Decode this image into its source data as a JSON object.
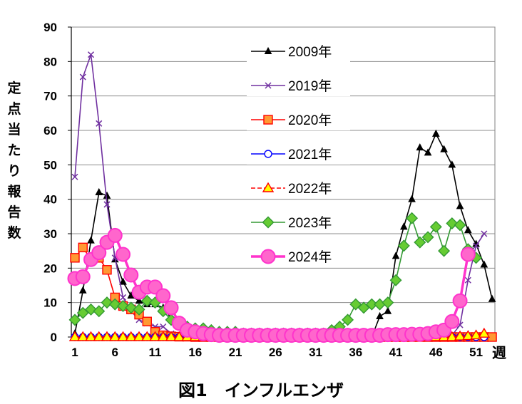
{
  "caption": "図1　インフルエンザ",
  "chart_data": {
    "type": "line",
    "title": "",
    "ylabel": "定点当たり報告数",
    "xlabel": "週",
    "ylim": [
      0,
      90
    ],
    "yticks": [
      0,
      10,
      20,
      30,
      40,
      50,
      60,
      70,
      80,
      90
    ],
    "xticks": [
      1,
      6,
      11,
      16,
      21,
      26,
      31,
      36,
      41,
      46,
      51
    ],
    "xlim": [
      1,
      53
    ],
    "grid": "horizontal",
    "legend_position": "top-center",
    "series": [
      {
        "name": "2009年",
        "color": "#000000",
        "marker": "triangle",
        "width": 1.6,
        "x": [
          1,
          2,
          3,
          4,
          5,
          6,
          7,
          8,
          9,
          10,
          11,
          12,
          13,
          14,
          15,
          16,
          17,
          18,
          19,
          20,
          21,
          22,
          23,
          24,
          25,
          26,
          27,
          28,
          29,
          30,
          31,
          32,
          33,
          34,
          35,
          36,
          37,
          38,
          39,
          40,
          41,
          42,
          43,
          44,
          45,
          46,
          47,
          48,
          49,
          50,
          51,
          52,
          53
        ],
        "values": [
          1,
          13.5,
          28,
          42,
          41,
          22.5,
          16,
          12,
          10.5,
          9.5,
          9.5,
          8.5,
          5.5,
          3,
          1.5,
          0.5,
          0,
          0,
          0,
          0,
          0,
          0,
          0,
          0,
          0,
          0,
          0,
          0,
          0,
          0,
          0,
          0,
          0,
          0,
          0,
          0,
          0,
          0,
          6,
          7.5,
          23.5,
          32,
          40,
          55,
          53.5,
          59,
          54.5,
          50,
          38,
          31,
          27,
          21,
          11
        ]
      },
      {
        "name": "2019年",
        "color": "#7030A0",
        "marker": "x",
        "width": 1.6,
        "x": [
          1,
          2,
          3,
          4,
          5,
          6,
          7,
          8,
          9,
          10,
          11,
          12,
          13,
          14,
          15,
          16,
          17,
          18,
          19,
          20,
          21,
          22,
          23,
          24,
          25,
          26,
          27,
          28,
          29,
          30,
          31,
          32,
          33,
          34,
          35,
          36,
          37,
          38,
          39,
          40,
          41,
          42,
          43,
          44,
          45,
          46,
          47,
          48,
          49,
          50,
          51,
          52
        ],
        "values": [
          46.5,
          75.5,
          82,
          62,
          38.5,
          23,
          11.5,
          7.5,
          5,
          4,
          3,
          3,
          1,
          0.5,
          0.5,
          0.3,
          0.3,
          0.2,
          0.2,
          0.2,
          0.2,
          0.2,
          0.2,
          0.2,
          0.2,
          0.2,
          0.2,
          0.2,
          0.2,
          0.2,
          0.2,
          0.2,
          0.2,
          0.2,
          0.2,
          0.2,
          0.2,
          0.2,
          0.2,
          0.2,
          0.2,
          0.2,
          0.2,
          0.2,
          0.3,
          0.3,
          0.5,
          0.5,
          3.5,
          16.5,
          26.5,
          30
        ]
      },
      {
        "name": "2020年",
        "color": "#FF0000",
        "fill": "#FF9933",
        "marker": "square",
        "width": 1.6,
        "x": [
          1,
          2,
          3,
          4,
          5,
          6,
          7,
          8,
          9,
          10,
          11,
          12,
          13,
          14,
          15,
          16,
          17,
          18,
          19,
          20,
          21,
          22,
          23,
          24,
          25,
          26,
          27,
          28,
          29,
          30,
          31,
          32,
          33,
          34,
          35,
          36,
          37,
          38,
          39,
          40,
          41,
          42,
          43,
          44,
          45,
          46,
          47,
          48,
          49,
          50,
          51,
          52,
          53
        ],
        "values": [
          23,
          26,
          22.5,
          23,
          19.5,
          11.5,
          9,
          8,
          6.5,
          4.5,
          1.5,
          0.5,
          0.2,
          0.1,
          0.1,
          0,
          0,
          0,
          0,
          0,
          0,
          0,
          0,
          0,
          0,
          0,
          0,
          0,
          0,
          0,
          0,
          0,
          0,
          0,
          0,
          0,
          0,
          0,
          0,
          0,
          0,
          0,
          0,
          0,
          0,
          0,
          0,
          0,
          0,
          0,
          0,
          0,
          0
        ]
      },
      {
        "name": "2021年",
        "color": "#0000FF",
        "fill": "#FFFFFF",
        "marker": "circle",
        "width": 1.6,
        "x": [
          1,
          2,
          3,
          4,
          5,
          6,
          7,
          8,
          9,
          10,
          11,
          12,
          13,
          14,
          15,
          16,
          17,
          18,
          19,
          20,
          21,
          22,
          23,
          24,
          25,
          26,
          27,
          28,
          29,
          30,
          31,
          32,
          33,
          34,
          35,
          36,
          37,
          38,
          39,
          40,
          41,
          42,
          43,
          44,
          45,
          46,
          47,
          48,
          49,
          50,
          51,
          52
        ],
        "values": [
          0,
          0,
          0,
          0,
          0,
          0,
          0,
          0,
          0,
          0,
          0,
          0,
          0,
          0,
          0,
          0,
          0,
          0,
          0,
          0,
          0,
          0,
          0,
          0,
          0,
          0,
          0,
          0,
          0,
          0,
          0,
          0,
          0,
          0,
          0,
          0,
          0,
          0,
          0,
          0,
          0,
          0,
          0,
          0,
          0,
          0,
          0,
          0,
          0,
          0,
          0,
          0
        ]
      },
      {
        "name": "2022年",
        "color": "#FF0000",
        "fill": "#FFFF00",
        "marker": "triangle-filled",
        "width": 1.6,
        "dashed": true,
        "x": [
          1,
          2,
          3,
          4,
          5,
          6,
          7,
          8,
          9,
          10,
          11,
          12,
          13,
          14,
          15,
          16,
          17,
          18,
          19,
          20,
          21,
          22,
          23,
          24,
          25,
          26,
          27,
          28,
          29,
          30,
          31,
          32,
          33,
          34,
          35,
          36,
          37,
          38,
          39,
          40,
          41,
          42,
          43,
          44,
          45,
          46,
          47,
          48,
          49,
          50,
          51,
          52
        ],
        "values": [
          0,
          0,
          0,
          0,
          0,
          0,
          0,
          0,
          0,
          0,
          0,
          0,
          0,
          0,
          0,
          0,
          0,
          0,
          0,
          0,
          0,
          0,
          0,
          0,
          0,
          0,
          0,
          0,
          0,
          0,
          0,
          0,
          0,
          0,
          0,
          0,
          0,
          0,
          0,
          0,
          0,
          0,
          0,
          0,
          0,
          0,
          0,
          0,
          0.2,
          0.3,
          0.5,
          1
        ]
      },
      {
        "name": "2023年",
        "color": "#339933",
        "fill": "#66CC33",
        "marker": "diamond",
        "width": 1.6,
        "x": [
          1,
          2,
          3,
          4,
          5,
          6,
          7,
          8,
          9,
          10,
          11,
          12,
          13,
          14,
          15,
          16,
          17,
          18,
          19,
          20,
          21,
          22,
          23,
          24,
          25,
          26,
          27,
          28,
          29,
          30,
          31,
          32,
          33,
          34,
          35,
          36,
          37,
          38,
          39,
          40,
          41,
          42,
          43,
          44,
          45,
          46,
          47,
          48,
          49,
          50,
          51,
          52
        ],
        "values": [
          5,
          7,
          8,
          7.5,
          10,
          9.5,
          9,
          8.5,
          8,
          10.5,
          10,
          7.5,
          5,
          4,
          3,
          2.5,
          2.5,
          2,
          1.5,
          1.5,
          1.5,
          1,
          1,
          1,
          1,
          1,
          1,
          1,
          1,
          1,
          1,
          1,
          2,
          3,
          5,
          9.5,
          8.5,
          9.5,
          9.5,
          10,
          16.5,
          26.5,
          34.5,
          27.5,
          29,
          32,
          25,
          33,
          32.5,
          25.5,
          23,
          null
        ]
      },
      {
        "name": "2024年",
        "color": "#FF33CC",
        "fill": "#FF66CC",
        "marker": "circle-big",
        "width": 3.5,
        "x": [
          1,
          2,
          3,
          4,
          5,
          6,
          7,
          8,
          9,
          10,
          11,
          12,
          13,
          14,
          15,
          16,
          17,
          18,
          19,
          20,
          21,
          22,
          23,
          24,
          25,
          26,
          27,
          28,
          29,
          30,
          31,
          32,
          33,
          34,
          35,
          36,
          37,
          38,
          39,
          40,
          41,
          42,
          43,
          44,
          45,
          46,
          47,
          48,
          49,
          50
        ],
        "values": [
          17,
          17.5,
          22.5,
          24.5,
          27.5,
          29.5,
          24,
          18,
          13,
          14.5,
          14.5,
          12,
          8.5,
          4,
          2,
          1.5,
          1,
          0.7,
          0.5,
          0.5,
          0.5,
          0.5,
          0.5,
          0.5,
          0.5,
          0.5,
          0.5,
          0.5,
          0.5,
          0.5,
          0.5,
          0.5,
          0.5,
          0.5,
          0.5,
          0.5,
          0.5,
          0.5,
          0.5,
          0.7,
          0.7,
          0.7,
          0.8,
          0.8,
          1,
          1.5,
          2,
          4.5,
          10.5,
          24
        ]
      }
    ]
  }
}
